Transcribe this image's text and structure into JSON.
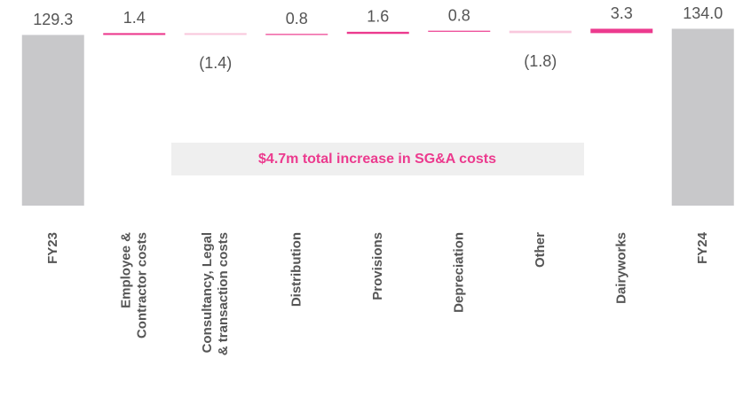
{
  "chart_data": {
    "type": "waterfall",
    "categories": [
      [
        "FY23"
      ],
      [
        "Employee &",
        "Contractor costs"
      ],
      [
        "Consultancy, Legal",
        "& transaction costs"
      ],
      [
        "Distribution"
      ],
      [
        "Provisions"
      ],
      [
        "Depreciation"
      ],
      [
        "Other"
      ],
      [
        "Dairyworks"
      ],
      [
        "FY24"
      ]
    ],
    "values": [
      129.3,
      1.4,
      -1.4,
      0.8,
      1.6,
      0.8,
      -1.8,
      3.3,
      134.0
    ],
    "value_labels": [
      "129.3",
      "1.4",
      "(1.4)",
      "0.8",
      "1.6",
      "0.8",
      "(1.8)",
      "3.3",
      "134.0"
    ],
    "colors": {
      "total": "#c8c8ca",
      "increase": "#ec3a8e",
      "decrease": "#f9c8dd"
    },
    "ylim": [
      -10,
      140
    ],
    "annotation": "$4.7m total increase in SG&A costs"
  }
}
